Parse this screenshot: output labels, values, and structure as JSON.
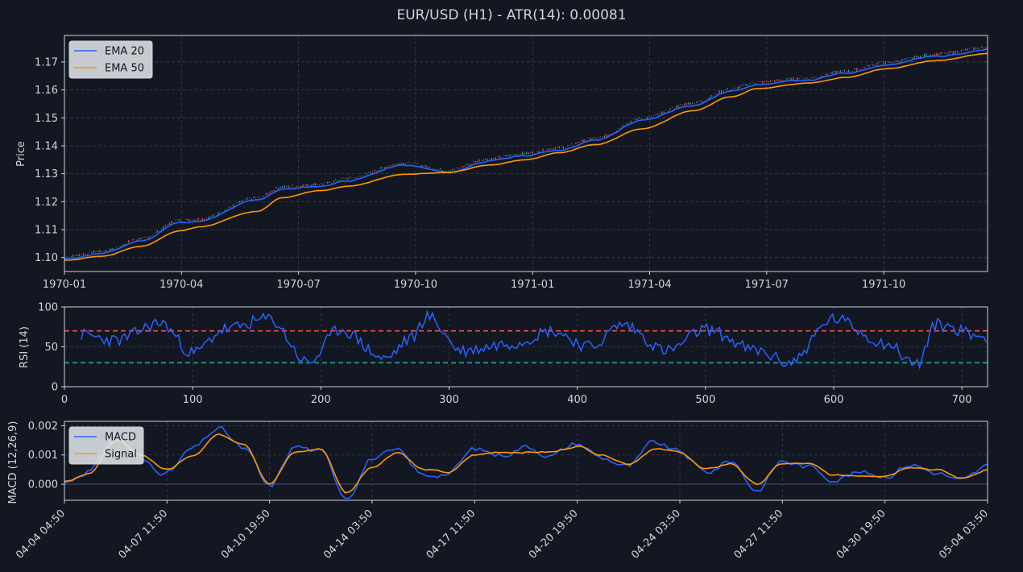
{
  "title": "EUR/USD (H1) - ATR(14): 0.00081",
  "colors": {
    "background": "#131722",
    "frame": "#cfd3da",
    "text": "#d1d4dc",
    "grid": "#363c4e",
    "ema20": "#2962ff",
    "ema50": "#ff9800",
    "up": "#26a69a",
    "down": "#ef5350",
    "rsi": "#2962ff",
    "overbought": "#ef5350",
    "oversold": "#26a69a",
    "macd": "#2962ff",
    "signal": "#ff9800"
  },
  "chart_data": [
    {
      "type": "line",
      "panel": "price",
      "ylabel": "Price",
      "ylim": [
        1.095,
        1.1795
      ],
      "yticks": [
        "1.10",
        "1.11",
        "1.12",
        "1.13",
        "1.14",
        "1.15",
        "1.16",
        "1.17"
      ],
      "xticks": [
        "1970-01",
        "1970-04",
        "1970-07",
        "1970-10",
        "1971-01",
        "1971-04",
        "1971-07",
        "1971-10"
      ],
      "grid": true,
      "legend": "top-left",
      "x_count": 720,
      "series": [
        {
          "name": "EMA 20",
          "x": [
            0,
            30,
            60,
            90,
            105,
            150,
            170,
            200,
            220,
            265,
            300,
            330,
            360,
            385,
            415,
            450,
            490,
            520,
            540,
            580,
            610,
            640,
            680,
            720
          ],
          "values": [
            1.0995,
            1.1015,
            1.106,
            1.1125,
            1.113,
            1.1205,
            1.1245,
            1.1255,
            1.1275,
            1.133,
            1.1305,
            1.1345,
            1.1365,
            1.1385,
            1.142,
            1.149,
            1.1545,
            1.1595,
            1.162,
            1.1635,
            1.166,
            1.169,
            1.172,
            1.1745
          ]
        },
        {
          "name": "EMA 50",
          "x": [
            0,
            30,
            60,
            90,
            105,
            150,
            170,
            200,
            220,
            265,
            300,
            330,
            360,
            385,
            415,
            450,
            490,
            520,
            540,
            580,
            610,
            640,
            680,
            720
          ],
          "values": [
            1.099,
            1.1005,
            1.104,
            1.1095,
            1.111,
            1.1165,
            1.1215,
            1.124,
            1.1255,
            1.1298,
            1.1305,
            1.133,
            1.135,
            1.1375,
            1.1405,
            1.146,
            1.1525,
            1.1575,
            1.1605,
            1.1625,
            1.1645,
            1.1675,
            1.1705,
            1.173
          ]
        }
      ]
    },
    {
      "type": "line",
      "panel": "rsi",
      "ylabel": "RSI (14)",
      "ylim": [
        0,
        100
      ],
      "xlim": [
        0,
        720
      ],
      "yticks": [
        "0",
        "50",
        "100"
      ],
      "xticks": [
        "0",
        "100",
        "200",
        "300",
        "400",
        "500",
        "600",
        "700"
      ],
      "grid": true,
      "levels": [
        70,
        30
      ],
      "series": [
        {
          "name": "RSI",
          "x": [
            13,
            40,
            75,
            100,
            125,
            160,
            190,
            215,
            250,
            270,
            283,
            310,
            350,
            380,
            410,
            435,
            470,
            500,
            540,
            565,
            600,
            640,
            665,
            680,
            720
          ],
          "values": [
            65,
            58,
            80,
            42,
            72,
            85,
            30,
            72,
            35,
            60,
            88,
            45,
            55,
            70,
            50,
            78,
            45,
            72,
            45,
            30,
            85,
            55,
            28,
            78,
            62
          ]
        }
      ]
    },
    {
      "type": "line",
      "panel": "macd",
      "ylabel": "MACD (12,26,9)",
      "ylim": [
        -0.00055,
        0.00215
      ],
      "yticks": [
        "0.000",
        "0.001",
        "0.002"
      ],
      "xticks": [
        "04-04 04:50",
        "04-07 11:50",
        "04-10 19:50",
        "04-14 03:50",
        "04-17 11:50",
        "04-20 19:50",
        "04-24 03:50",
        "04-27 11:50",
        "04-30 19:50",
        "05-04 03:50"
      ],
      "grid": true,
      "legend": "top-left",
      "zero_line": 0,
      "series": [
        {
          "name": "MACD",
          "x": [
            0,
            20,
            40,
            60,
            80,
            100,
            120,
            140,
            160,
            180,
            200,
            220,
            240,
            260,
            280,
            300,
            320,
            340,
            360,
            380,
            400,
            420,
            440,
            460,
            480,
            500,
            520,
            540,
            560,
            580,
            600,
            620,
            640,
            660,
            680,
            700,
            720
          ],
          "values": [
            5e-05,
            0.0005,
            0.0017,
            0.0008,
            0.0004,
            0.0012,
            0.0019,
            0.0012,
            -0.0001,
            0.0013,
            0.0011,
            -0.0004,
            0.0009,
            0.0011,
            0.0003,
            0.0004,
            0.0012,
            0.001,
            0.0013,
            0.001,
            0.0014,
            0.0009,
            0.0006,
            0.0014,
            0.0011,
            0.0004,
            0.0008,
            -0.0002,
            0.0008,
            0.0006,
            0.0002,
            0.0004,
            0.0003,
            0.0007,
            0.0004,
            0.0001,
            0.0006
          ]
        },
        {
          "name": "Signal",
          "x": [
            0,
            20,
            40,
            60,
            80,
            100,
            120,
            140,
            160,
            180,
            200,
            220,
            240,
            260,
            280,
            300,
            320,
            340,
            360,
            380,
            400,
            420,
            440,
            460,
            480,
            500,
            520,
            540,
            560,
            580,
            600,
            620,
            640,
            660,
            680,
            700,
            720
          ],
          "values": [
            0.0001,
            0.0004,
            0.0015,
            0.001,
            0.0005,
            0.001,
            0.0017,
            0.0014,
            0.0,
            0.0011,
            0.0012,
            -0.0003,
            0.0006,
            0.0011,
            0.0005,
            0.0004,
            0.001,
            0.0011,
            0.0011,
            0.0011,
            0.0013,
            0.001,
            0.0007,
            0.0012,
            0.0011,
            0.0005,
            0.0007,
            0.0,
            0.0007,
            0.0007,
            0.0003,
            0.0003,
            0.0003,
            0.0006,
            0.0005,
            0.0002,
            0.0005
          ]
        }
      ]
    }
  ]
}
